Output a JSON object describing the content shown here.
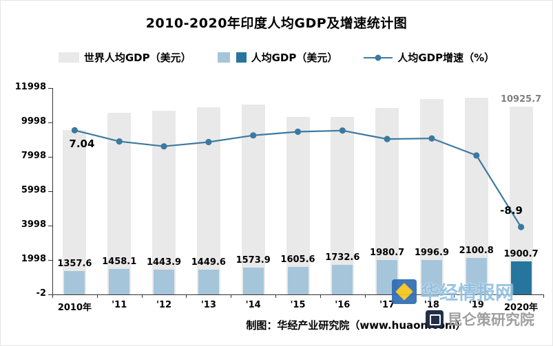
{
  "title": "2010-2020年印度人均GDP及增速统计图",
  "legend": [
    {
      "label": "世界人均GDP（美元）",
      "type": "bar",
      "color": "#e9e9e9"
    },
    {
      "label": "人均GDP（美元）",
      "type": "bar",
      "color": "#a5c5da",
      "highlight_color": "#25759e"
    },
    {
      "label": "人均GDP增速（%）",
      "type": "line",
      "color": "#3b79a1"
    }
  ],
  "annotations": {
    "first_growth": "7.04",
    "last_growth": "-8.9",
    "world_2020": "10925.7"
  },
  "footer": "制图：华经产业研究院（www.huaon.com）",
  "watermarks": [
    {
      "text": "华经情报网"
    },
    {
      "text": "昆仑策研究院"
    }
  ],
  "colors": {
    "world_bar": "#e9e9e9",
    "india_bar": "#a5c5da",
    "india_bar_2020": "#25759e",
    "growth_line": "#3b79a1",
    "world_label": "#7f7f7f",
    "axis": "#333333"
  },
  "chart_data": {
    "type": "bar",
    "subtype": "bar+line combo",
    "title": "2010-2020年印度人均GDP及增速统计图",
    "categories": [
      "2010年",
      "'11",
      "'12",
      "'13",
      "'14",
      "'15",
      "'16",
      "'17",
      "'18",
      "'19",
      "2020年"
    ],
    "series": [
      {
        "name": "世界人均GDP（美元）",
        "type": "bar",
        "axis": "left",
        "values": [
          9554,
          10568,
          10690,
          10872,
          11028,
          10302,
          10311,
          10846,
          11350,
          11441,
          10925.7
        ],
        "labeled_points": {
          "2020年": 10925.7
        }
      },
      {
        "name": "人均GDP（美元）",
        "type": "bar",
        "axis": "left",
        "values": [
          1357.6,
          1458.1,
          1443.9,
          1449.6,
          1573.9,
          1605.6,
          1732.6,
          1980.7,
          1996.9,
          2100.8,
          1900.7
        ]
      },
      {
        "name": "人均GDP增速（%）",
        "type": "line",
        "axis": "right-hidden",
        "values": [
          7.04,
          5.2,
          4.4,
          5.1,
          6.2,
          6.8,
          7.0,
          5.6,
          5.7,
          2.9,
          -8.9
        ],
        "labeled_points": {
          "2010年": 7.04,
          "2020年": -8.9
        }
      }
    ],
    "y_axis": {
      "ticks": [
        11998,
        9998,
        7998,
        5998,
        3998,
        1998,
        -2
      ],
      "min": -2,
      "max": 11998
    },
    "y2_axis": {
      "min": -20,
      "max": 14,
      "visible": false
    },
    "grid": false,
    "legend_position": "top"
  }
}
